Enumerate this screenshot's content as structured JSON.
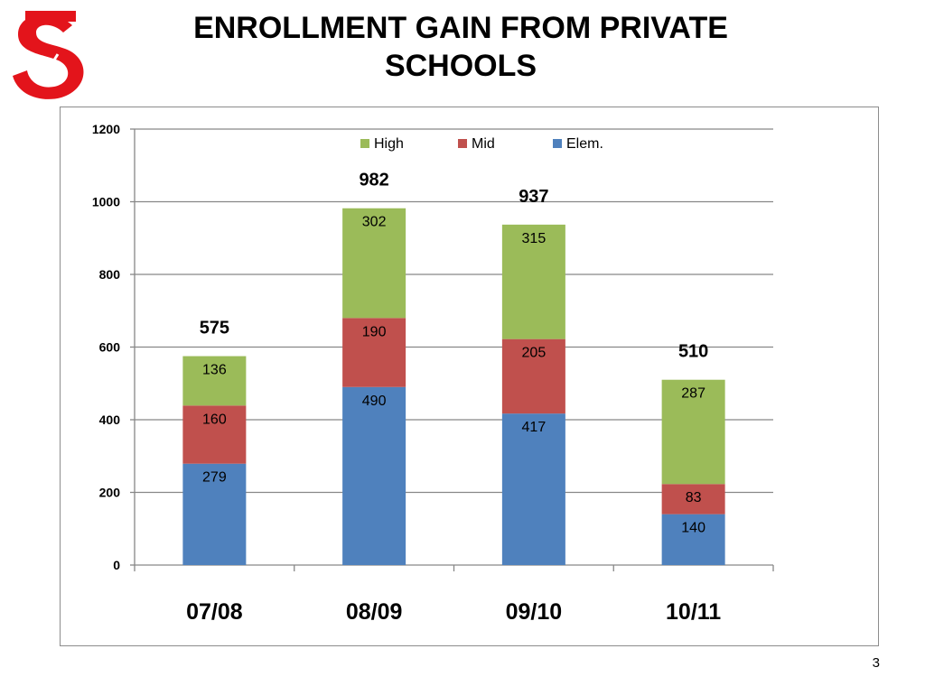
{
  "title_line1": "ENROLLMENT GAIN FROM PRIVATE",
  "title_line2": "SCHOOLS",
  "page_number": "3",
  "logo": {
    "icon": "s-logo-icon",
    "color": "#e3141b"
  },
  "colors": {
    "Elem.": "#4f81bd",
    "Mid": "#c0504d",
    "High": "#9bbb59"
  },
  "chart_data": {
    "type": "bar",
    "stacked": true,
    "title": "",
    "xlabel": "",
    "ylabel": "",
    "categories": [
      "07/08",
      "08/09",
      "09/10",
      "10/11"
    ],
    "series": [
      {
        "name": "Elem.",
        "values": [
          279,
          490,
          417,
          140
        ]
      },
      {
        "name": "Mid",
        "values": [
          160,
          190,
          205,
          83
        ]
      },
      {
        "name": "High",
        "values": [
          136,
          302,
          315,
          287
        ]
      }
    ],
    "totals": [
      575,
      982,
      937,
      510
    ],
    "ylim": [
      0,
      1200
    ],
    "yticks": [
      0,
      200,
      400,
      600,
      800,
      1000,
      1200
    ],
    "grid": true,
    "legend": {
      "position": "top",
      "order": [
        "High",
        "Mid",
        "Elem."
      ]
    }
  }
}
